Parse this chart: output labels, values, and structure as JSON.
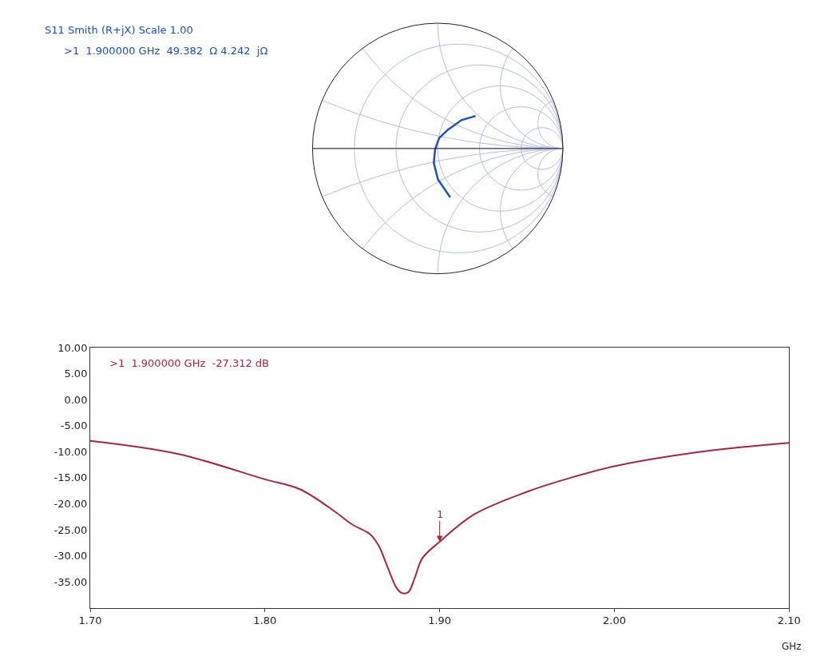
{
  "chart_data": [
    {
      "type": "other",
      "title": "S11 Smith (R+jX) Scale 1.00",
      "annotations": [
        ">1  1.900000 GHz  49.382  Ω 4.242  jΩ"
      ]
    },
    {
      "type": "line",
      "xlabel": "GHz",
      "color": "#a3283f",
      "x": [
        1.7,
        1.75,
        1.8,
        1.82,
        1.84,
        1.85,
        1.86,
        1.865,
        1.87,
        1.875,
        1.878,
        1.882,
        1.886,
        1.89,
        1.9,
        1.92,
        1.95,
        1.97,
        2.0,
        2.05,
        2.1
      ],
      "values": [
        -7.9,
        -10.4,
        -15.3,
        -17.2,
        -21.5,
        -24.0,
        -25.8,
        -28.0,
        -32.0,
        -36.0,
        -37.1,
        -37.0,
        -34.0,
        -30.5,
        -27.3,
        -22.0,
        -17.7,
        -15.5,
        -12.8,
        -10.0,
        -8.3
      ],
      "xlim": [
        1.7,
        2.1
      ],
      "ylim": [
        -40,
        10
      ],
      "xticks": [
        {
          "value": 1.7,
          "label": "1.70"
        },
        {
          "value": 1.8,
          "label": "1.80"
        },
        {
          "value": 1.9,
          "label": "1.90"
        },
        {
          "value": 2.0,
          "label": "2.00"
        },
        {
          "value": 2.1,
          "label": "2.10"
        }
      ],
      "yticks": [
        {
          "value": 10,
          "label": "10.00"
        },
        {
          "value": 5,
          "label": "5.00"
        },
        {
          "value": 0,
          "label": "0.00"
        },
        {
          "value": -5,
          "label": "-5.00"
        },
        {
          "value": -10,
          "label": "-10.00"
        },
        {
          "value": -15,
          "label": "-15.00"
        },
        {
          "value": -20,
          "label": "-20.00"
        },
        {
          "value": -25,
          "label": "-25.00"
        },
        {
          "value": -30,
          "label": "-30.00"
        },
        {
          "value": -35,
          "label": "-35.00"
        }
      ],
      "annotations": [
        ">1  1.900000 GHz  -27.312 dB",
        {
          "text": "1",
          "x": 1.9,
          "y": -27.312
        }
      ]
    }
  ]
}
